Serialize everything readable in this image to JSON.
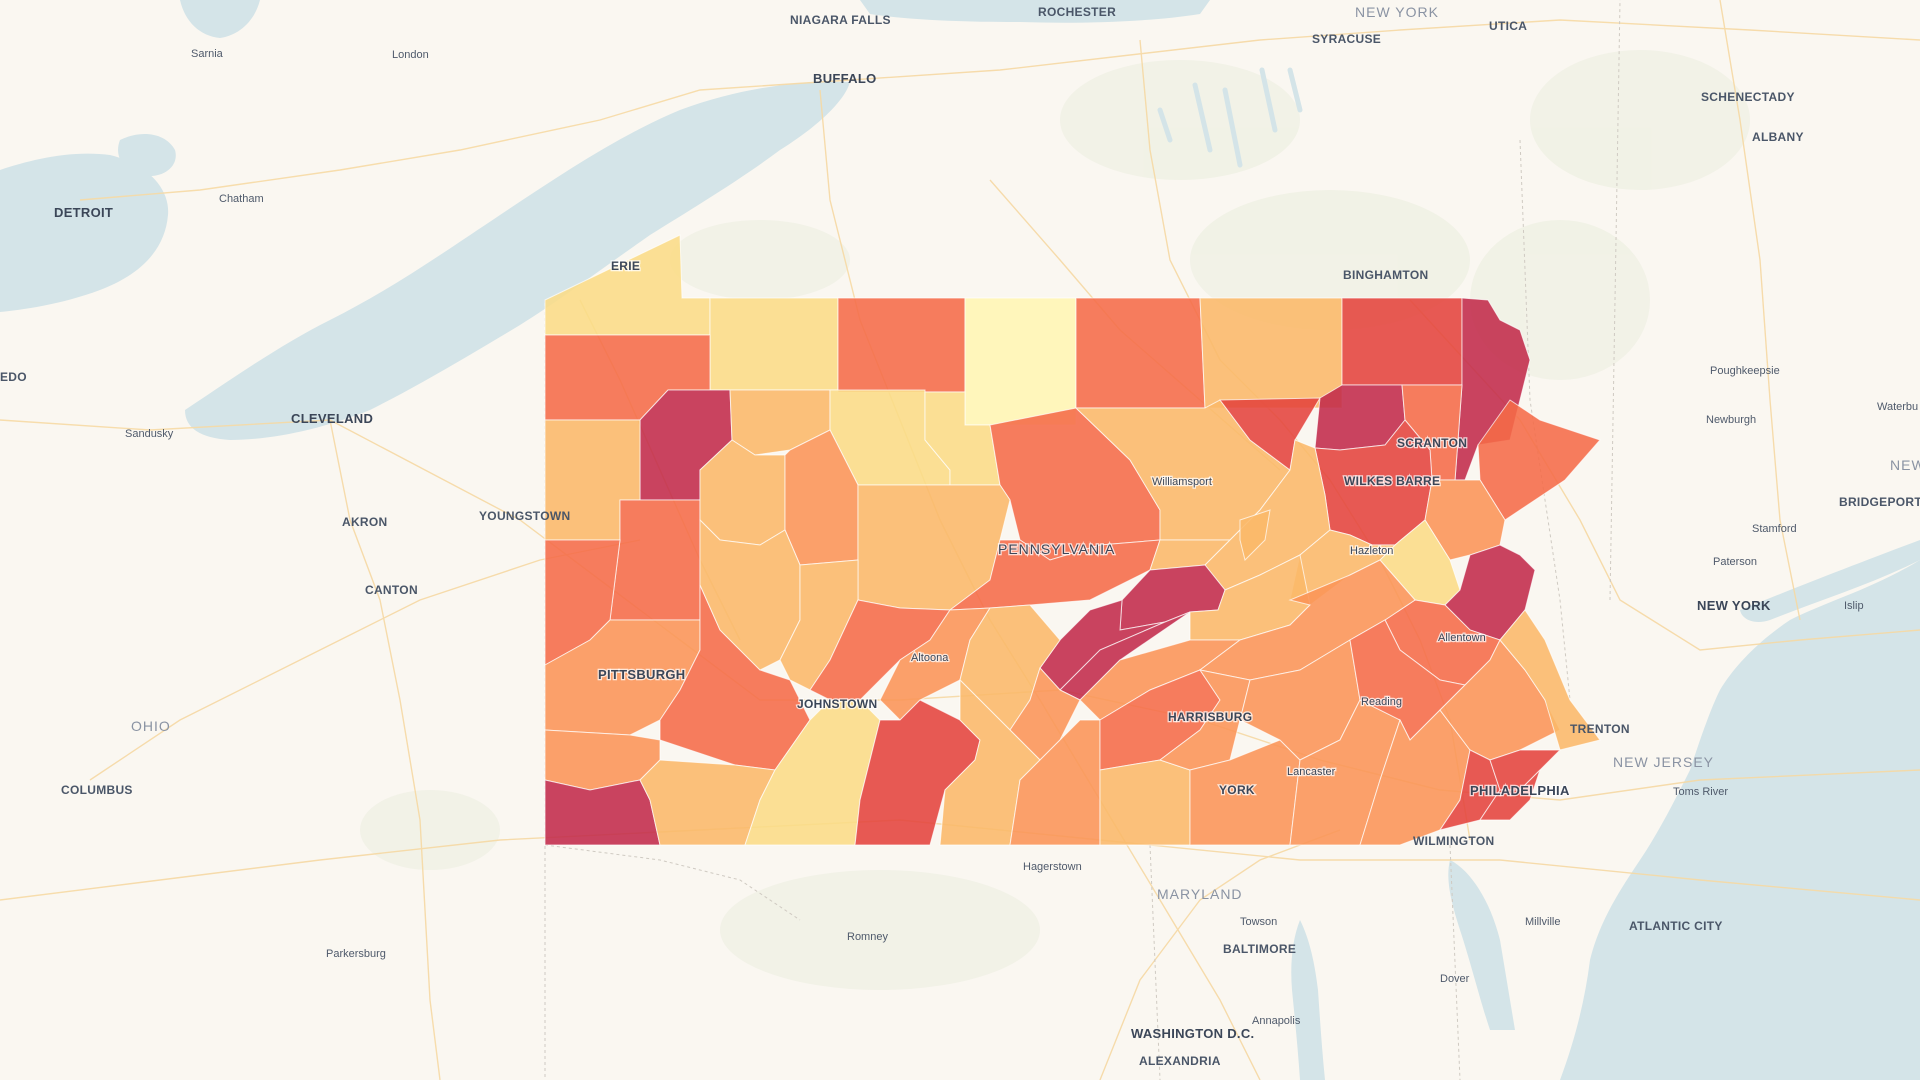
{
  "map": {
    "colors": {
      "background": "#faf7f1",
      "water": "#d4e4e8",
      "road": "#f6d9a4",
      "border": "#cfcac2",
      "choropleth": [
        "#fff6b3",
        "#fbdc86",
        "#fbb869",
        "#fa9457",
        "#f56b48",
        "#e4433c",
        "#c22a4a"
      ]
    },
    "labels": [
      {
        "text": "NIAGARA FALLS",
        "size": "md"
      },
      {
        "text": "ROCHESTER",
        "size": "md"
      },
      {
        "text": "NEW YORK",
        "size": "region"
      },
      {
        "text": "UTICA",
        "size": "md"
      },
      {
        "text": "SYRACUSE",
        "size": "md"
      },
      {
        "text": "BUFFALO",
        "size": "lg"
      },
      {
        "text": "Sarnia",
        "size": "sm"
      },
      {
        "text": "London",
        "size": "sm"
      },
      {
        "text": "SCHENECTADY",
        "size": "md"
      },
      {
        "text": "ALBANY",
        "size": "md"
      },
      {
        "text": "Chatham",
        "size": "sm"
      },
      {
        "text": "DETROIT",
        "size": "lg"
      },
      {
        "text": "ERIE",
        "size": "md"
      },
      {
        "text": "BINGHAMTON",
        "size": "md"
      },
      {
        "text": "EDO",
        "size": "md"
      },
      {
        "text": "Poughkeepsie",
        "size": "sm"
      },
      {
        "text": "Waterbu",
        "size": "sm"
      },
      {
        "text": "Sandusky",
        "size": "sm"
      },
      {
        "text": "CLEVELAND",
        "size": "lg"
      },
      {
        "text": "Newburgh",
        "size": "sm"
      },
      {
        "text": "SCRANTON",
        "size": "md"
      },
      {
        "text": "Williamsport",
        "size": "sm"
      },
      {
        "text": "NEW",
        "size": "region"
      },
      {
        "text": "WILKES BARRE",
        "size": "md"
      },
      {
        "text": "BRIDGEPORT",
        "size": "md"
      },
      {
        "text": "YOUNGSTOWN",
        "size": "md"
      },
      {
        "text": "AKRON",
        "size": "md"
      },
      {
        "text": "Stamford",
        "size": "sm"
      },
      {
        "text": "PENNSYLVANIA",
        "size": "region"
      },
      {
        "text": "Hazleton",
        "size": "sm"
      },
      {
        "text": "Paterson",
        "size": "sm"
      },
      {
        "text": "CANTON",
        "size": "md"
      },
      {
        "text": "NEW YORK",
        "size": "lg"
      },
      {
        "text": "Islip",
        "size": "sm"
      },
      {
        "text": "Allentown",
        "size": "sm"
      },
      {
        "text": "Altoona",
        "size": "sm"
      },
      {
        "text": "PITTSBURGH",
        "size": "lg"
      },
      {
        "text": "JOHNSTOWN",
        "size": "md"
      },
      {
        "text": "Reading",
        "size": "sm"
      },
      {
        "text": "HARRISBURG",
        "size": "md"
      },
      {
        "text": "OHIO",
        "size": "region"
      },
      {
        "text": "TRENTON",
        "size": "md"
      },
      {
        "text": "NEW JERSEY",
        "size": "region"
      },
      {
        "text": "Lancaster",
        "size": "sm"
      },
      {
        "text": "COLUMBUS",
        "size": "md"
      },
      {
        "text": "YORK",
        "size": "md"
      },
      {
        "text": "Toms River",
        "size": "sm"
      },
      {
        "text": "PHILADELPHIA",
        "size": "lg"
      },
      {
        "text": "WILMINGTON",
        "size": "md"
      },
      {
        "text": "Hagerstown",
        "size": "sm"
      },
      {
        "text": "MARYLAND",
        "size": "region"
      },
      {
        "text": "Towson",
        "size": "sm"
      },
      {
        "text": "Millville",
        "size": "sm"
      },
      {
        "text": "ATLANTIC CITY",
        "size": "md"
      },
      {
        "text": "Romney",
        "size": "sm"
      },
      {
        "text": "BALTIMORE",
        "size": "md"
      },
      {
        "text": "Parkersburg",
        "size": "sm"
      },
      {
        "text": "Dover",
        "size": "sm"
      },
      {
        "text": "Annapolis",
        "size": "sm"
      },
      {
        "text": "WASHINGTON D.C.",
        "size": "lg"
      },
      {
        "text": "ALEXANDRIA",
        "size": "md"
      }
    ]
  }
}
